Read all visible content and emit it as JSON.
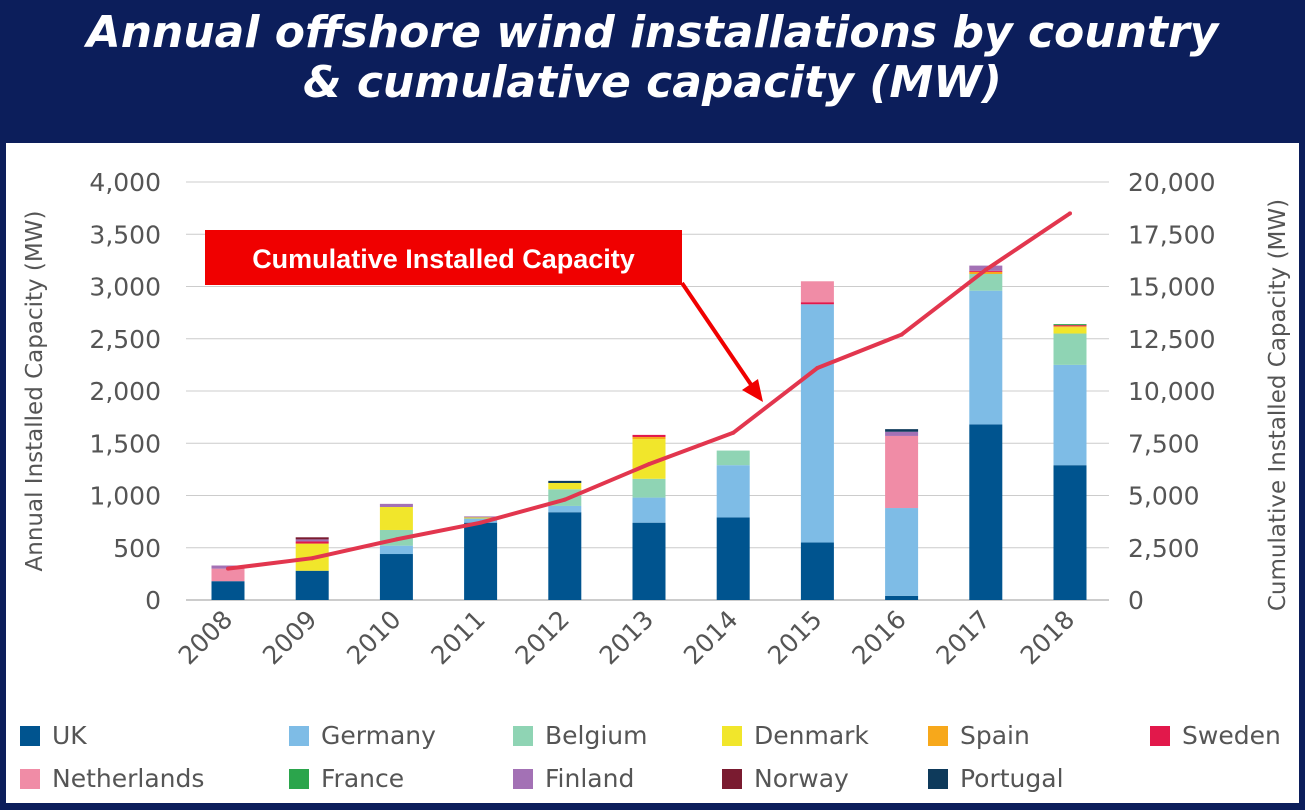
{
  "page": {
    "title_line1": "Annual offshore wind installations by country",
    "title_line2": "& cumulative capacity (MW)"
  },
  "chart_data": {
    "type": "bar",
    "stacked": true,
    "categories": [
      "2008",
      "2009",
      "2010",
      "2011",
      "2012",
      "2013",
      "2014",
      "2015",
      "2016",
      "2017",
      "2018"
    ],
    "ylabel": "Annual Installed Capacity (MW)",
    "y2label": "Cumulative Installed Capacity (MW)",
    "ylim": [
      0,
      4000
    ],
    "y2lim": [
      0,
      20000
    ],
    "yticks": [
      "0",
      "500",
      "1,000",
      "1,500",
      "2,000",
      "2,500",
      "3,000",
      "3,500",
      "4,000"
    ],
    "y2ticks": [
      "0",
      "2,500",
      "5,000",
      "7,500",
      "10,000",
      "12,500",
      "15,000",
      "17,500",
      "20,000"
    ],
    "grid": true,
    "legend_position": "bottom",
    "annotation": "Cumulative Installed Capacity",
    "series": [
      {
        "name": "UK",
        "color": "#00548f",
        "values": [
          180,
          280,
          440,
          740,
          840,
          740,
          790,
          550,
          40,
          1680,
          1290
        ]
      },
      {
        "name": "Germany",
        "color": "#7ebce6",
        "values": [
          0,
          0,
          80,
          40,
          60,
          240,
          500,
          2280,
          840,
          1280,
          960
        ]
      },
      {
        "name": "Belgium",
        "color": "#8fd4b4",
        "values": [
          0,
          0,
          150,
          0,
          160,
          180,
          140,
          0,
          0,
          160,
          300
        ]
      },
      {
        "name": "Denmark",
        "color": "#f1e62b",
        "values": [
          0,
          260,
          220,
          10,
          60,
          380,
          0,
          0,
          0,
          0,
          60
        ]
      },
      {
        "name": "Spain",
        "color": "#f7a81b",
        "values": [
          0,
          0,
          0,
          0,
          0,
          20,
          0,
          0,
          0,
          20,
          10
        ]
      },
      {
        "name": "Sweden",
        "color": "#e2184b",
        "values": [
          0,
          20,
          0,
          0,
          0,
          20,
          0,
          20,
          0,
          10,
          10
        ]
      },
      {
        "name": "Netherlands",
        "color": "#f08ca6",
        "values": [
          120,
          0,
          0,
          0,
          0,
          0,
          0,
          200,
          690,
          0,
          0
        ]
      },
      {
        "name": "France",
        "color": "#2ba54c",
        "values": [
          0,
          0,
          0,
          0,
          0,
          0,
          0,
          0,
          0,
          0,
          10
        ]
      },
      {
        "name": "Finland",
        "color": "#a371b5",
        "values": [
          30,
          20,
          30,
          10,
          0,
          0,
          0,
          0,
          40,
          50,
          0
        ]
      },
      {
        "name": "Norway",
        "color": "#7a1b30",
        "values": [
          0,
          20,
          0,
          0,
          0,
          0,
          0,
          0,
          0,
          0,
          0
        ]
      },
      {
        "name": "Portugal",
        "color": "#0e3a5b",
        "values": [
          0,
          0,
          0,
          0,
          20,
          0,
          0,
          0,
          25,
          0,
          0
        ]
      }
    ],
    "cumulative": {
      "name": "Cumulative Installed Capacity",
      "color": "#e2364e",
      "values": [
        1500,
        2000,
        2900,
        3700,
        4800,
        6500,
        8000,
        11100,
        12700,
        15800,
        18500
      ]
    }
  }
}
